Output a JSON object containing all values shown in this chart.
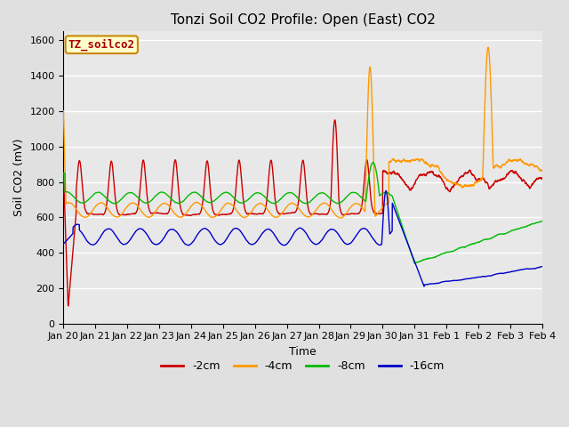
{
  "title": "Tonzi Soil CO2 Profile: Open (East) CO2",
  "xlabel": "Time",
  "ylabel": "Soil CO2 (mV)",
  "ylim": [
    0,
    1650
  ],
  "colors": {
    "-2cm": "#cc0000",
    "-4cm": "#ff9900",
    "-8cm": "#00bb00",
    "-16cm": "#0000cc"
  },
  "legend_label": "TZ_soilco2",
  "tick_labels": [
    "Jan 20",
    "Jan 21",
    "Jan 22",
    "Jan 23",
    "Jan 24",
    "Jan 25",
    "Jan 26",
    "Jan 27",
    "Jan 28",
    "Jan 29",
    "Jan 30",
    "Jan 31",
    "Feb 1",
    "Feb 2",
    "Feb 3",
    "Feb 4"
  ],
  "title_fontsize": 11,
  "axis_label_fontsize": 9,
  "tick_fontsize": 8,
  "legend_fontsize": 9
}
